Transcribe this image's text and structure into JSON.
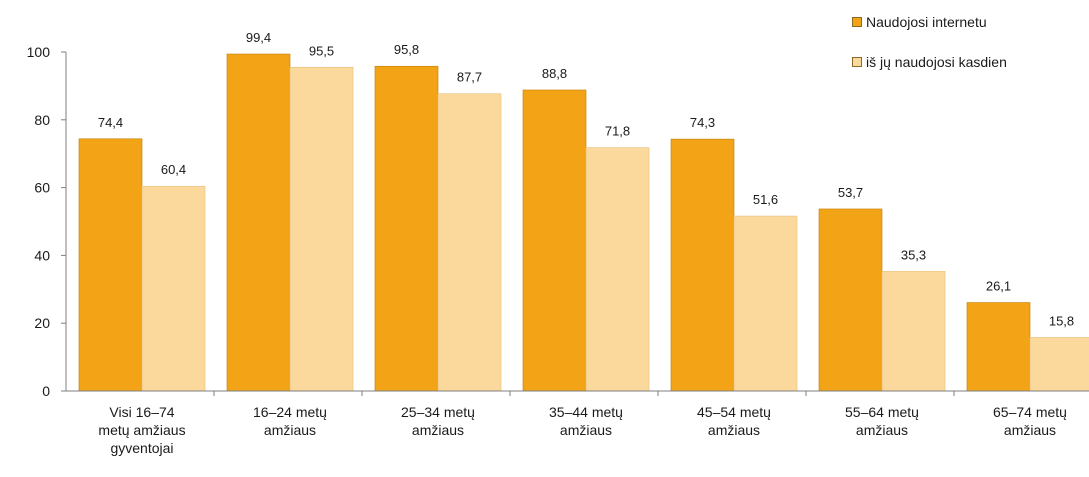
{
  "chart_data": {
    "type": "bar",
    "categories": [
      [
        "Visi 16–74",
        "metų amžiaus",
        "gyventojai"
      ],
      [
        "16–24 metų",
        "amžiaus"
      ],
      [
        "25–34 metų",
        "amžiaus"
      ],
      [
        "35–44 metų",
        "amžiaus"
      ],
      [
        "45–54 metų",
        "amžiaus"
      ],
      [
        "55–64 metų",
        "amžiaus"
      ],
      [
        "65–74 metų",
        "amžiaus"
      ]
    ],
    "series": [
      {
        "name": "Naudojosi internetu",
        "color": "#f2a316",
        "values": [
          74.4,
          99.4,
          95.8,
          88.8,
          74.3,
          53.7,
          26.1
        ],
        "labels": [
          "74,4",
          "99,4",
          "95,8",
          "88,8",
          "74,3",
          "53,7",
          "26,1"
        ]
      },
      {
        "name": "iš jų naudojosi kasdien",
        "color": "#fbd89c",
        "values": [
          60.4,
          95.5,
          87.7,
          71.8,
          51.6,
          35.3,
          15.8
        ],
        "labels": [
          "60,4",
          "95,5",
          "87,7",
          "71,8",
          "51,6",
          "35,3",
          "15,8"
        ]
      }
    ],
    "yticks": [
      "0",
      "20",
      "40",
      "60",
      "80",
      "100"
    ],
    "ylim": [
      0,
      100
    ],
    "grid": false,
    "legend": "top-right",
    "title": "",
    "xlabel": "",
    "ylabel": ""
  }
}
